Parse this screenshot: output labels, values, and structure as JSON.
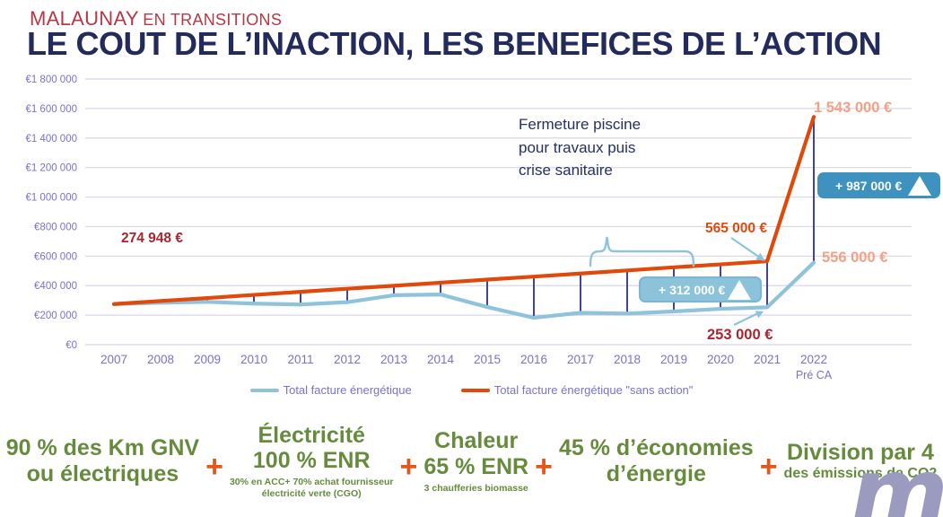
{
  "header": {
    "brand_name": "MALAUNAY",
    "brand_suffix": "EN TRANSITIONS",
    "title": "LE COUT DE L’INACTION, LES BENEFICES DE L’ACTION"
  },
  "chart_data": {
    "type": "line",
    "x_labels": [
      "2007",
      "2008",
      "2009",
      "2010",
      "2011",
      "2012",
      "2013",
      "2014",
      "2015",
      "2016",
      "2017",
      "2018",
      "2019",
      "2020",
      "2021",
      "2022"
    ],
    "x_sublabels": [
      "",
      "",
      "",
      "",
      "",
      "",
      "",
      "",
      "",
      "",
      "",
      "",
      "",
      "",
      "",
      "Pré CA"
    ],
    "ylim": [
      0,
      1800000
    ],
    "yticks": [
      {
        "value": 1800000,
        "label": "€1 800 000"
      },
      {
        "value": 1600000,
        "label": "€1 600 000"
      },
      {
        "value": 1400000,
        "label": "€1 400 000"
      },
      {
        "value": 1200000,
        "label": "€1 200 000"
      },
      {
        "value": 1000000,
        "label": "€1 000 000"
      },
      {
        "value": 800000,
        "label": "€800 000"
      },
      {
        "value": 600000,
        "label": "€600 000"
      },
      {
        "value": 400000,
        "label": "€400 000"
      },
      {
        "value": 200000,
        "label": "€200 000"
      },
      {
        "value": 0,
        "label": "€0"
      }
    ],
    "grid": "horizontal",
    "legend_position": "bottom",
    "series": [
      {
        "id": "facture",
        "name": "Total facture énergétique",
        "color": "#8fc3dc",
        "values": [
          274948,
          284000,
          290000,
          278000,
          272000,
          288000,
          335000,
          340000,
          255000,
          182000,
          216000,
          211000,
          225000,
          243000,
          253000,
          556000
        ]
      },
      {
        "id": "sans-action",
        "name": "Total facture énergétique \"sans action\"",
        "color": "#e1490b",
        "values": [
          274948,
          296000,
          316000,
          337000,
          358000,
          379000,
          399000,
          420000,
          441000,
          461000,
          482000,
          503000,
          524000,
          544000,
          565000,
          1543000
        ]
      }
    ],
    "colors": {
      "grid": "#d9d6ea",
      "axis": "#7a72c9",
      "connector": "#2d3285",
      "decoration": "#8fc3dc"
    }
  },
  "chart_labels": {
    "start_2007": "274 948 €",
    "sans_action_2021": "565 000 €",
    "sans_action_2022": "1 543 000 €",
    "action_2021": "253 000 €",
    "action_2022": "556 000 €",
    "delta_2021": "+ 312 000 €",
    "delta_2022": "+ 987 000 €",
    "note_lines": [
      "Fermeture piscine",
      "pour travaux puis",
      "crise sanitaire"
    ]
  },
  "legend": {
    "items": [
      {
        "label": "Total facture énergétique",
        "color": "#8fc3dc"
      },
      {
        "label": "Total facture énergétique \"sans action\"",
        "color": "#e1490b"
      }
    ]
  },
  "footer": {
    "plus": "+",
    "items": [
      {
        "title_lines": [
          "90 % des Km GNV",
          "ou électriques"
        ],
        "subtitle_lines": []
      },
      {
        "title_lines": [
          "Électricité",
          "100 % ENR"
        ],
        "subtitle_lines": [
          "30% en ACC+ 70% achat fournisseur",
          "électricité verte (CGO)"
        ]
      },
      {
        "title_lines": [
          "Chaleur",
          "65 % ENR"
        ],
        "subtitle_lines": [
          "3 chaufferies biomasse"
        ]
      },
      {
        "title_lines": [
          "45 % d’économies",
          "d’énergie"
        ],
        "subtitle_lines": []
      },
      {
        "title_lines": [
          "Division par 4"
        ],
        "subtitle_lines": [
          "des émissions de CO2"
        ]
      }
    ]
  },
  "logo_glyph": "m"
}
